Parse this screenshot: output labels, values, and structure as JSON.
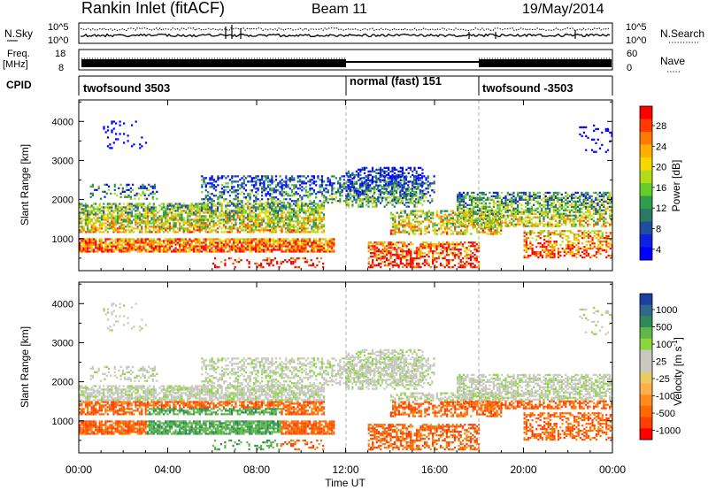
{
  "header": {
    "station": "Rankin Inlet (fitACF)",
    "beam": "Beam 11",
    "date": "19/May/2014"
  },
  "top_panels": {
    "nsky_label": "N.Sky",
    "nsearch_label": "N.Search",
    "nsky_ticks": [
      "10^5",
      "10^0"
    ],
    "nsearch_ticks": [
      "10^5",
      "10^0"
    ],
    "freq_label": "Freq.",
    "freq_unit": "[MHz]",
    "freq_ticks": [
      "18",
      "8"
    ],
    "nave_label": "Nave",
    "nave_ticks": [
      "60",
      "0"
    ],
    "cpid_label": "CPID",
    "cpid_segments": [
      {
        "label": "twofsound 3503",
        "start_hour": 0,
        "end_hour": 12
      },
      {
        "label": "normal (fast) 151",
        "start_hour": 12,
        "end_hour": 18
      },
      {
        "label": "twofsound -3503",
        "start_hour": 18,
        "end_hour": 24
      }
    ]
  },
  "chart_data": [
    {
      "type": "heatmap",
      "quantity": "Power",
      "ylabel": "Slant Range [km]",
      "xlim": [
        0,
        24
      ],
      "ylim": [
        180,
        4550
      ],
      "yticks": [
        1000,
        2000,
        3000,
        4000
      ],
      "colorbar_label": "Power [dB]",
      "colorbar_ticks": [
        "28",
        "24",
        "20",
        "16",
        "12",
        "8",
        "4"
      ],
      "colorbar_colors": [
        "#ff0000",
        "#ff3a00",
        "#ff7a00",
        "#ffae00",
        "#f4d800",
        "#b2dc18",
        "#68cd2a",
        "#2e9d4e",
        "#2a7a62",
        "#1e4ea0",
        "#1020e0",
        "#0000ff"
      ]
    },
    {
      "type": "heatmap",
      "quantity": "Velocity",
      "ylabel": "Slant Range [km]",
      "xlabel": "Time UT",
      "xlim": [
        0,
        24
      ],
      "ylim": [
        180,
        4550
      ],
      "yticks": [
        1000,
        2000,
        3000,
        4000
      ],
      "xticks": [
        "00:00",
        "04:00",
        "08:00",
        "12:00",
        "16:00",
        "20:00",
        "00:00"
      ],
      "colorbar_label": "Velocity [m s",
      "colorbar_label_exp": "-1",
      "colorbar_label_end": "]",
      "colorbar_ticks": [
        "1000",
        "500",
        "100",
        "25",
        "-25",
        "-100",
        "-500",
        "-1000"
      ],
      "colorbar_colors": [
        "#1d3f9f",
        "#2f6a8e",
        "#2e8b57",
        "#5fb84a",
        "#8bd63c",
        "#c8c8c0",
        "#c9c9c2",
        "#e8cc60",
        "#ffb04a",
        "#ff8a1e",
        "#ff6a00",
        "#ff4000",
        "#ff0000"
      ]
    }
  ],
  "xaxis": {
    "title": "Time UT",
    "ticks": [
      "00:00",
      "04:00",
      "08:00",
      "12:00",
      "16:00",
      "20:00",
      "00:00"
    ]
  }
}
